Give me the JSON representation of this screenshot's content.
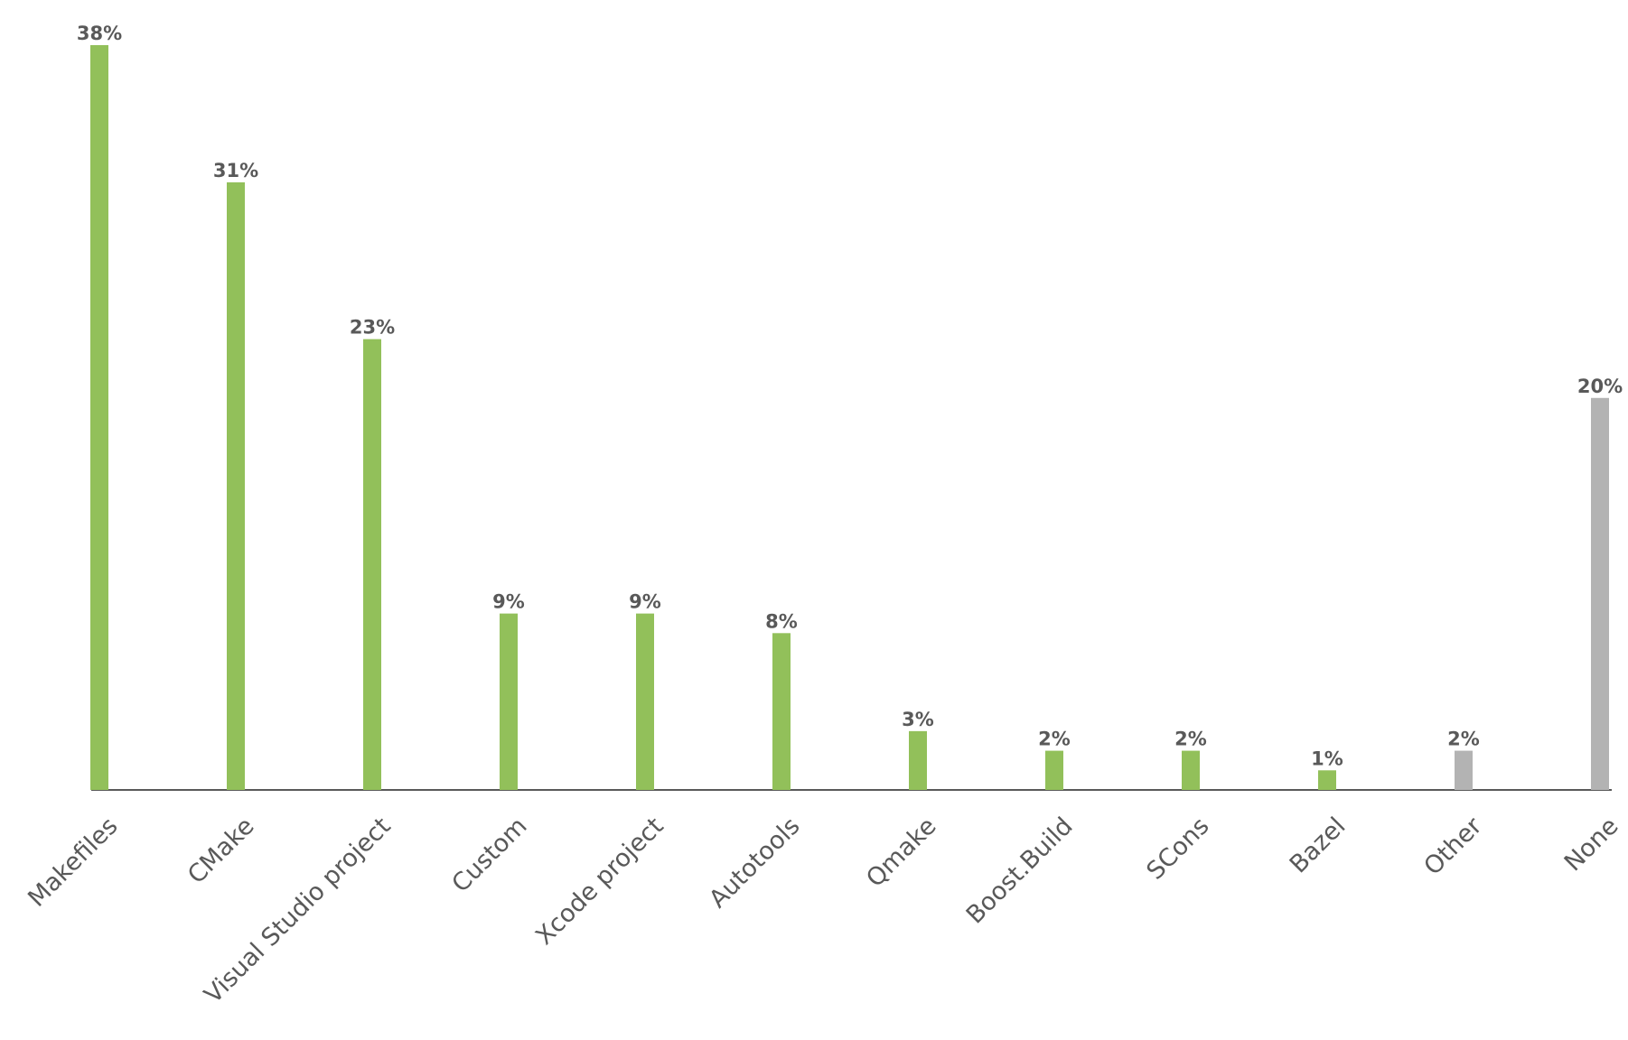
{
  "chart_data": {
    "type": "bar",
    "categories": [
      "Makefiles",
      "CMake",
      "Visual Studio project",
      "Custom",
      "Xcode project",
      "Autotools",
      "Qmake",
      "Boost.Build",
      "SCons",
      "Bazel",
      "Other",
      "None"
    ],
    "values": [
      38,
      31,
      23,
      9,
      9,
      8,
      3,
      2,
      2,
      1,
      2,
      20
    ],
    "value_labels": [
      "38%",
      "31%",
      "23%",
      "9%",
      "9%",
      "8%",
      "3%",
      "2%",
      "2%",
      "1%",
      "2%",
      "20%"
    ],
    "colors": [
      "#92c05a",
      "#92c05a",
      "#92c05a",
      "#92c05a",
      "#92c05a",
      "#92c05a",
      "#92c05a",
      "#92c05a",
      "#92c05a",
      "#92c05a",
      "#b3b3b3",
      "#b3b3b3"
    ]
  }
}
